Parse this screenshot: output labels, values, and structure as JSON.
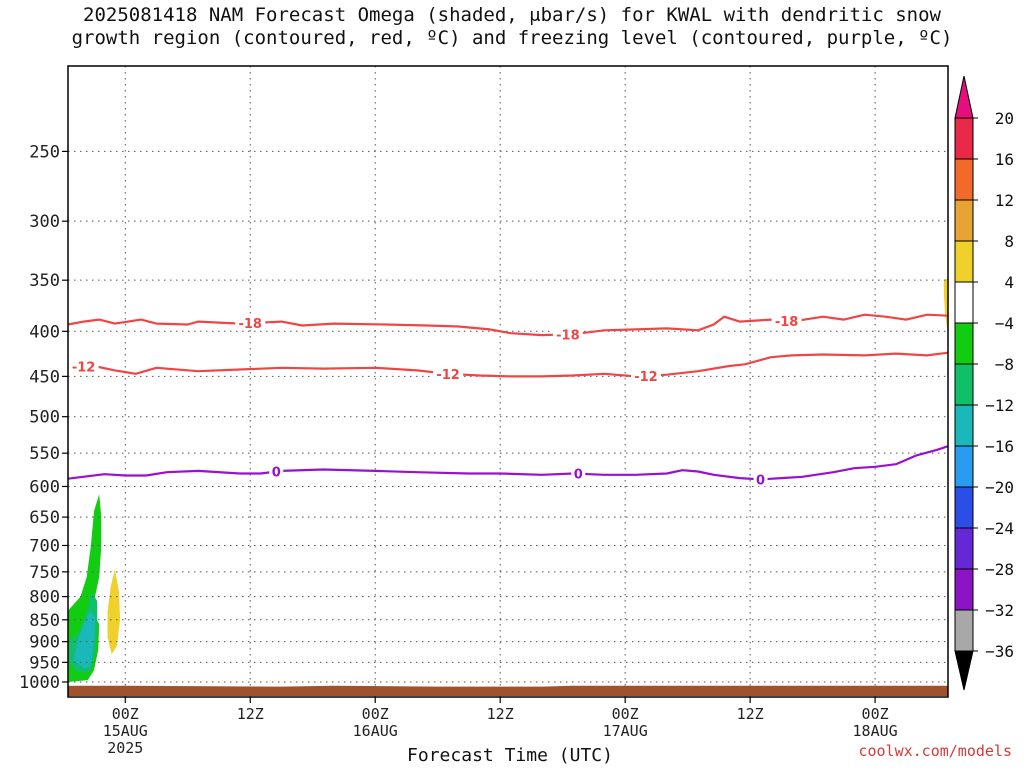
{
  "title_line1": "2025081418 NAM Forecast Omega (shaded, μbar/s) for KWAL with dendritic snow",
  "title_line2": "growth region (contoured, red, ºC) and freezing level (contoured, purple, ºC)",
  "watermark": "coolwx.com/models",
  "chart_data": {
    "type": "heatmap",
    "title": "2025081418 NAM Forecast Omega (shaded, μbar/s) for KWAL with dendritic snow growth region (contoured, red, ºC) and freezing level (contoured, purple, ºC)",
    "xlabel": "Forecast Time (UTC)",
    "ylabel": "",
    "x_range_hours": [
      -5.5,
      79
    ],
    "y_axis": {
      "scale": "log-pressure",
      "ylim_hPa": [
        1040,
        200
      ],
      "inverted": true,
      "ticks": [
        250,
        300,
        350,
        400,
        450,
        500,
        550,
        600,
        650,
        700,
        750,
        800,
        850,
        900,
        950,
        1000
      ]
    },
    "x_ticks": [
      {
        "hour": 0,
        "label": "00Z",
        "sub1": "15AUG",
        "sub2": "2025"
      },
      {
        "hour": 12,
        "label": "12Z",
        "sub1": "",
        "sub2": ""
      },
      {
        "hour": 24,
        "label": "00Z",
        "sub1": "16AUG",
        "sub2": ""
      },
      {
        "hour": 36,
        "label": "12Z",
        "sub1": "",
        "sub2": ""
      },
      {
        "hour": 48,
        "label": "00Z",
        "sub1": "17AUG",
        "sub2": ""
      },
      {
        "hour": 60,
        "label": "12Z",
        "sub1": "",
        "sub2": ""
      },
      {
        "hour": 72,
        "label": "00Z",
        "sub1": "18AUG",
        "sub2": ""
      }
    ],
    "grid": true,
    "colorbar": {
      "labels": [
        "20",
        "16",
        "12",
        "8",
        "4",
        "−4",
        "−8",
        "−12",
        "−16",
        "−20",
        "−24",
        "−28",
        "−32",
        "−36"
      ],
      "colors": [
        "#e8294a",
        "#f26a2a",
        "#e9a335",
        "#f0d02b",
        "#ffffff",
        "#12cc12",
        "#0fbf6a",
        "#1ab8b8",
        "#2a9cf0",
        "#2a4ee6",
        "#6428d6",
        "#8d14c4",
        "#a8a8a8"
      ],
      "top_extend_color": "#e20f7c",
      "bottom_extend_color": "#000000"
    },
    "ground_color": "#a0522d",
    "series": [
      {
        "name": "-18",
        "color": "#f04545",
        "points": [
          [
            -5.5,
            393
          ],
          [
            -4,
            390
          ],
          [
            -2.5,
            388
          ],
          [
            -1,
            392
          ],
          [
            1.5,
            388
          ],
          [
            3,
            392
          ],
          [
            6,
            393
          ],
          [
            7,
            390
          ],
          [
            9,
            391
          ],
          [
            11,
            392
          ],
          [
            15,
            390
          ],
          [
            17,
            394
          ],
          [
            20,
            392
          ],
          [
            25,
            393
          ],
          [
            29,
            394
          ],
          [
            32,
            395
          ],
          [
            35,
            398
          ],
          [
            37,
            402
          ],
          [
            40,
            404
          ],
          [
            43,
            403
          ],
          [
            46,
            399
          ],
          [
            49,
            398
          ],
          [
            52,
            397
          ],
          [
            55,
            399
          ],
          [
            56.5,
            393
          ],
          [
            57.5,
            385
          ],
          [
            59,
            390
          ],
          [
            62,
            388
          ],
          [
            64,
            390
          ],
          [
            67,
            385
          ],
          [
            69,
            388
          ],
          [
            71,
            383
          ],
          [
            73,
            385
          ],
          [
            75,
            388
          ],
          [
            77,
            383
          ],
          [
            79,
            384
          ]
        ],
        "labels": [
          {
            "x": 12.0,
            "text": "-18"
          },
          {
            "x": 42.5,
            "text": "-18"
          },
          {
            "x": 63.5,
            "text": "-18"
          }
        ]
      },
      {
        "name": "-12",
        "color": "#f04545",
        "points": [
          [
            -5.5,
            440
          ],
          [
            -3,
            438
          ],
          [
            -1,
            443
          ],
          [
            1,
            447
          ],
          [
            3,
            440
          ],
          [
            7,
            444
          ],
          [
            11,
            442
          ],
          [
            15,
            440
          ],
          [
            19,
            441
          ],
          [
            24,
            440
          ],
          [
            28,
            443
          ],
          [
            31,
            447
          ],
          [
            34,
            449
          ],
          [
            37,
            450
          ],
          [
            40,
            450
          ],
          [
            43,
            449
          ],
          [
            46,
            447
          ],
          [
            49,
            450
          ],
          [
            52,
            448
          ],
          [
            55,
            444
          ],
          [
            58,
            438
          ],
          [
            59.5,
            436
          ],
          [
            62,
            428
          ],
          [
            64,
            426
          ],
          [
            67,
            425
          ],
          [
            71,
            426
          ],
          [
            74,
            424
          ],
          [
            77,
            426
          ],
          [
            79,
            423
          ]
        ],
        "labels": [
          {
            "x": -4.0,
            "text": "-12"
          },
          {
            "x": 31.0,
            "text": "-12"
          },
          {
            "x": 50.0,
            "text": "-12"
          }
        ]
      },
      {
        "name": "0",
        "color": "#9a10d0",
        "points": [
          [
            -5.5,
            588
          ],
          [
            -2,
            581
          ],
          [
            0,
            583
          ],
          [
            2,
            583
          ],
          [
            4,
            578
          ],
          [
            7,
            576
          ],
          [
            11,
            580
          ],
          [
            13,
            580
          ],
          [
            15,
            576
          ],
          [
            19,
            574
          ],
          [
            24,
            576
          ],
          [
            28,
            578
          ],
          [
            33,
            580
          ],
          [
            36,
            580
          ],
          [
            40,
            582
          ],
          [
            43,
            580
          ],
          [
            46,
            582
          ],
          [
            49,
            582
          ],
          [
            52,
            580
          ],
          [
            53.5,
            575
          ],
          [
            55,
            577
          ],
          [
            56.5,
            582
          ],
          [
            59,
            587
          ],
          [
            61,
            589
          ],
          [
            63,
            587
          ],
          [
            65,
            585
          ],
          [
            68,
            578
          ],
          [
            70,
            572
          ],
          [
            72,
            570
          ],
          [
            74,
            566
          ],
          [
            76,
            553
          ],
          [
            78,
            545
          ],
          [
            79,
            540
          ]
        ],
        "labels": [
          {
            "x": 14.5,
            "text": "0"
          },
          {
            "x": 43.5,
            "text": "0"
          },
          {
            "x": 61.0,
            "text": "0"
          }
        ]
      }
    ],
    "shaded_regions": [
      {
        "band": "−4",
        "color": "#12cc12",
        "points": [
          [
            -5.5,
            885
          ],
          [
            -4,
            860
          ],
          [
            -3.2,
            830
          ],
          [
            -2.8,
            790
          ],
          [
            -2.5,
            760
          ],
          [
            -2.3,
            700
          ],
          [
            -2.3,
            650
          ],
          [
            -2.5,
            612
          ],
          [
            -3.0,
            640
          ],
          [
            -3.3,
            700
          ],
          [
            -3.7,
            760
          ],
          [
            -4.3,
            800
          ],
          [
            -5.5,
            830
          ]
        ]
      },
      {
        "band": "−4",
        "color": "#12cc12",
        "points": [
          [
            -5.5,
            1000
          ],
          [
            -3.6,
            995
          ],
          [
            -3.0,
            970
          ],
          [
            -2.6,
            920
          ],
          [
            -2.5,
            860
          ],
          [
            -3.2,
            830
          ],
          [
            -4.2,
            850
          ],
          [
            -5.5,
            880
          ]
        ]
      },
      {
        "band": "−8",
        "color": "#0fbf6a",
        "points": [
          [
            -5.5,
            950
          ],
          [
            -4.6,
            975
          ],
          [
            -3.4,
            975
          ],
          [
            -2.9,
            930
          ],
          [
            -2.7,
            870
          ],
          [
            -2.7,
            810
          ],
          [
            -3.2,
            790
          ],
          [
            -3.8,
            840
          ],
          [
            -4.5,
            880
          ],
          [
            -5.5,
            900
          ]
        ]
      },
      {
        "band": "−12",
        "color": "#1ab8b8",
        "points": [
          [
            -5.0,
            945
          ],
          [
            -4.0,
            965
          ],
          [
            -3.3,
            960
          ],
          [
            -3.0,
            900
          ],
          [
            -2.9,
            845
          ],
          [
            -3.4,
            830
          ],
          [
            -4.0,
            860
          ],
          [
            -4.6,
            900
          ]
        ]
      },
      {
        "band": "4",
        "color": "#f0d02b",
        "points": [
          [
            -1.0,
            745
          ],
          [
            -0.6,
            790
          ],
          [
            -0.5,
            850
          ],
          [
            -0.8,
            910
          ],
          [
            -1.3,
            930
          ],
          [
            -1.7,
            890
          ],
          [
            -1.7,
            830
          ],
          [
            -1.4,
            780
          ]
        ]
      },
      {
        "band": "4",
        "color": "#f0d02b",
        "points": [
          [
            78.6,
            350
          ],
          [
            79,
            348
          ],
          [
            79,
            405
          ],
          [
            78.7,
            380
          ],
          [
            78.6,
            362
          ]
        ]
      }
    ],
    "ground_surface_hPa": [
      [
        -5.5,
        1010
      ],
      [
        0,
        1010
      ],
      [
        15,
        1012
      ],
      [
        20,
        1010
      ],
      [
        30,
        1012
      ],
      [
        40,
        1012
      ],
      [
        43,
        1010
      ],
      [
        60,
        1010
      ],
      [
        79,
        1010
      ]
    ]
  }
}
